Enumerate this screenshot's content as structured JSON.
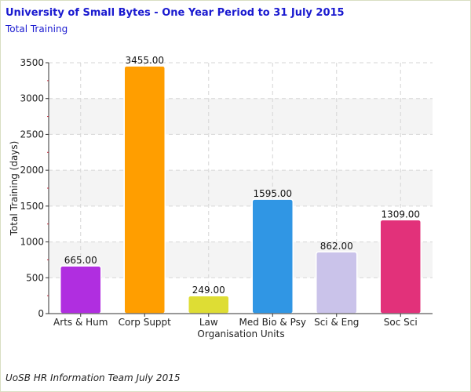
{
  "header": {
    "title": "University of Small Bytes - One Year Period to 31 July 2015",
    "subtitle": "Total Training"
  },
  "footer": {
    "credit": "UoSB HR Information Team July 2015"
  },
  "colors": {
    "title": "#1a1ad0",
    "band": "#f4f4f4",
    "grid": "#d6d6d6"
  },
  "chart_data": {
    "type": "bar",
    "title": "",
    "xlabel": "Organisation Units",
    "ylabel": "Total Training (days)",
    "categories": [
      "Arts & Hum",
      "Corp Suppt",
      "Law",
      "Med Bio & Psy",
      "Sci & Eng",
      "Soc Sci"
    ],
    "values": [
      665,
      3455,
      249,
      1595,
      862,
      1309
    ],
    "value_labels": [
      "665.00",
      "3455.00",
      "249.00",
      "1595.00",
      "862.00",
      "1309.00"
    ],
    "bar_colors": [
      "#b02ee0",
      "#ff9e00",
      "#dedd34",
      "#3096e4",
      "#cac3ea",
      "#e2317a"
    ],
    "ylim": [
      0,
      3500
    ],
    "yticks": [
      0,
      500,
      1000,
      1500,
      2000,
      2500,
      3000,
      3500
    ],
    "grid": true,
    "legend": "none"
  }
}
